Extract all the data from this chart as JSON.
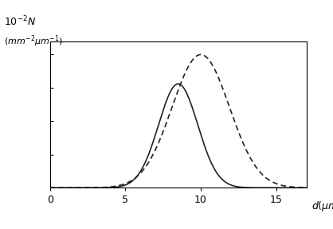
{
  "ylabel_line1": "$10^{-2}N$",
  "ylabel_line2": "$(mm^{-2}\\mu m^{-1})$",
  "xlabel": "$d(\\mu m)$",
  "xlim": [
    0,
    17
  ],
  "ylim": [
    0,
    1.1
  ],
  "xticks": [
    0,
    5,
    10,
    15
  ],
  "solid_mean": 8.5,
  "solid_std": 1.3,
  "solid_amplitude": 0.78,
  "dashed_mean": 10.0,
  "dashed_std": 1.9,
  "dashed_amplitude": 1.0,
  "line_color": "#222222",
  "background_color": "#ffffff",
  "figsize": [
    4.18,
    2.87
  ],
  "dpi": 100
}
